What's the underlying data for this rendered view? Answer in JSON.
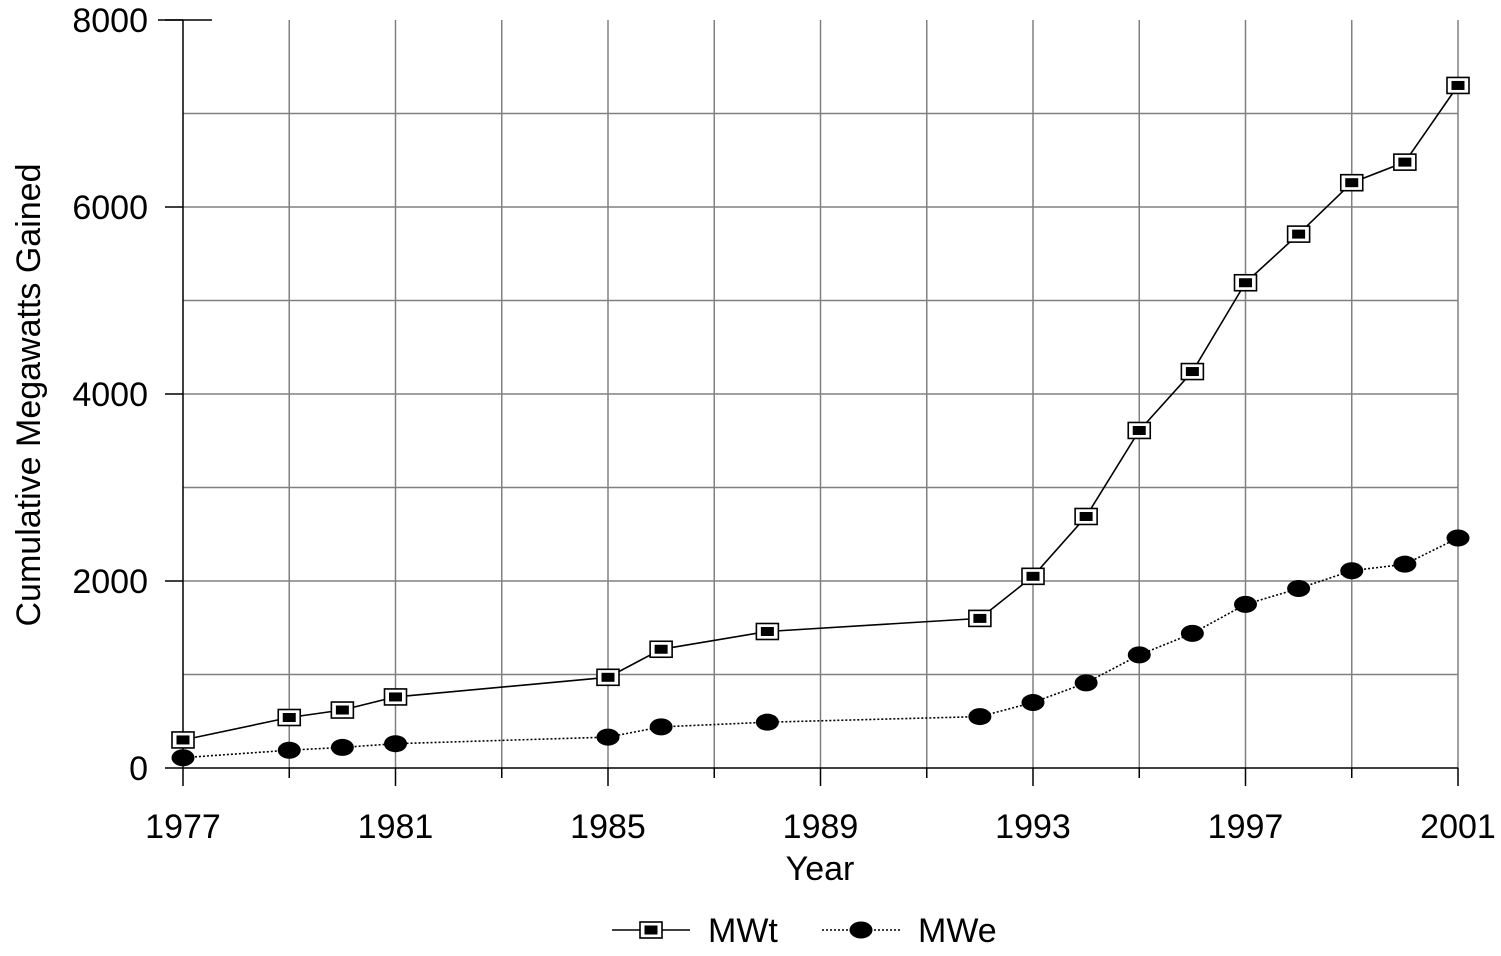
{
  "chart_data": {
    "type": "line",
    "title": "",
    "xlabel": "Year",
    "ylabel": "Cumulative Megawatts Gained",
    "xlim": [
      1977,
      2001
    ],
    "ylim": [
      0,
      8000
    ],
    "x_ticks": [
      1977,
      1981,
      1985,
      1989,
      1993,
      1997,
      2001
    ],
    "x_tick_labels": [
      "1977",
      "1981",
      "1985",
      "1989",
      "1993",
      "1997",
      "2001"
    ],
    "x_grid_step": 2,
    "y_ticks": [
      0,
      2000,
      4000,
      6000,
      8000
    ],
    "y_tick_labels": [
      "0",
      "2000",
      "4000",
      "6000",
      "8000"
    ],
    "y_grid_step": 1000,
    "grid": true,
    "legend_position": "bottom-center",
    "series": [
      {
        "name": "MWt",
        "marker": "square",
        "line_style": "solid",
        "x": [
          1977,
          1979,
          1980,
          1981,
          1985,
          1986,
          1988,
          1992,
          1993,
          1994,
          1995,
          1996,
          1997,
          1998,
          1999,
          2000,
          2001
        ],
        "y": [
          300,
          540,
          620,
          760,
          970,
          1270,
          1460,
          1600,
          2050,
          2690,
          3610,
          4240,
          5190,
          5710,
          6260,
          6480,
          7300
        ]
      },
      {
        "name": "MWe",
        "marker": "circle",
        "line_style": "dotted",
        "x": [
          1977,
          1979,
          1980,
          1981,
          1985,
          1986,
          1988,
          1992,
          1993,
          1994,
          1995,
          1996,
          1997,
          1998,
          1999,
          2000,
          2001
        ],
        "y": [
          110,
          190,
          220,
          260,
          330,
          440,
          490,
          550,
          700,
          910,
          1210,
          1440,
          1750,
          1920,
          2110,
          2180,
          2460
        ]
      }
    ]
  }
}
